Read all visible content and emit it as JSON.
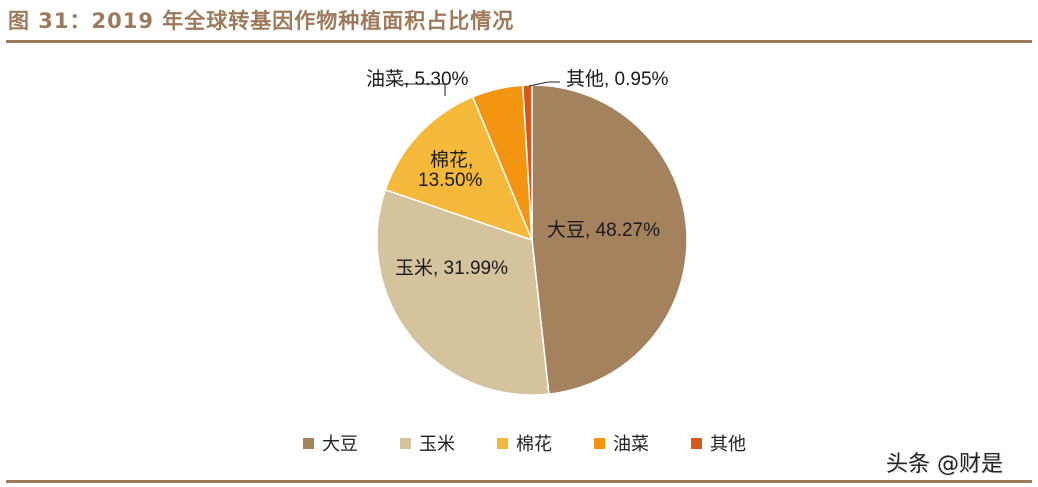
{
  "header": {
    "title": "图 31：2019 年全球转基因作物种植面积占比情况"
  },
  "watermark": "头条 @财是",
  "chart_data": {
    "type": "pie",
    "title": "图 31：2019 年全球转基因作物种植面积占比情况",
    "categories": [
      "大豆",
      "玉米",
      "棉花",
      "油菜",
      "其他"
    ],
    "values": [
      48.27,
      31.99,
      13.5,
      5.3,
      0.95
    ],
    "unit": "%",
    "colors": [
      "#a5825e",
      "#d4c39d",
      "#f4b93a",
      "#f39510",
      "#d45a1c"
    ],
    "data_labels": [
      "大豆, 48.27%",
      "玉米, 31.99%",
      "棉花,\n13.50%",
      "油菜, 5.30%",
      "其他, 0.95%"
    ],
    "legend_position": "bottom",
    "start_angle": "12 o'clock, clockwise"
  },
  "labels": {
    "soy": "大豆, 48.27%",
    "corn": "玉米, 31.99%",
    "cotton_1": "棉花,",
    "cotton_2": "13.50%",
    "rapeseed": "油菜, 5.30%",
    "other": "其他, 0.95%"
  },
  "legend": [
    {
      "label": "大豆",
      "color": "#a5825e"
    },
    {
      "label": "玉米",
      "color": "#d4c39d"
    },
    {
      "label": "棉花",
      "color": "#f4b93a"
    },
    {
      "label": "油菜",
      "color": "#f39510"
    },
    {
      "label": "其他",
      "color": "#d45a1c"
    }
  ]
}
